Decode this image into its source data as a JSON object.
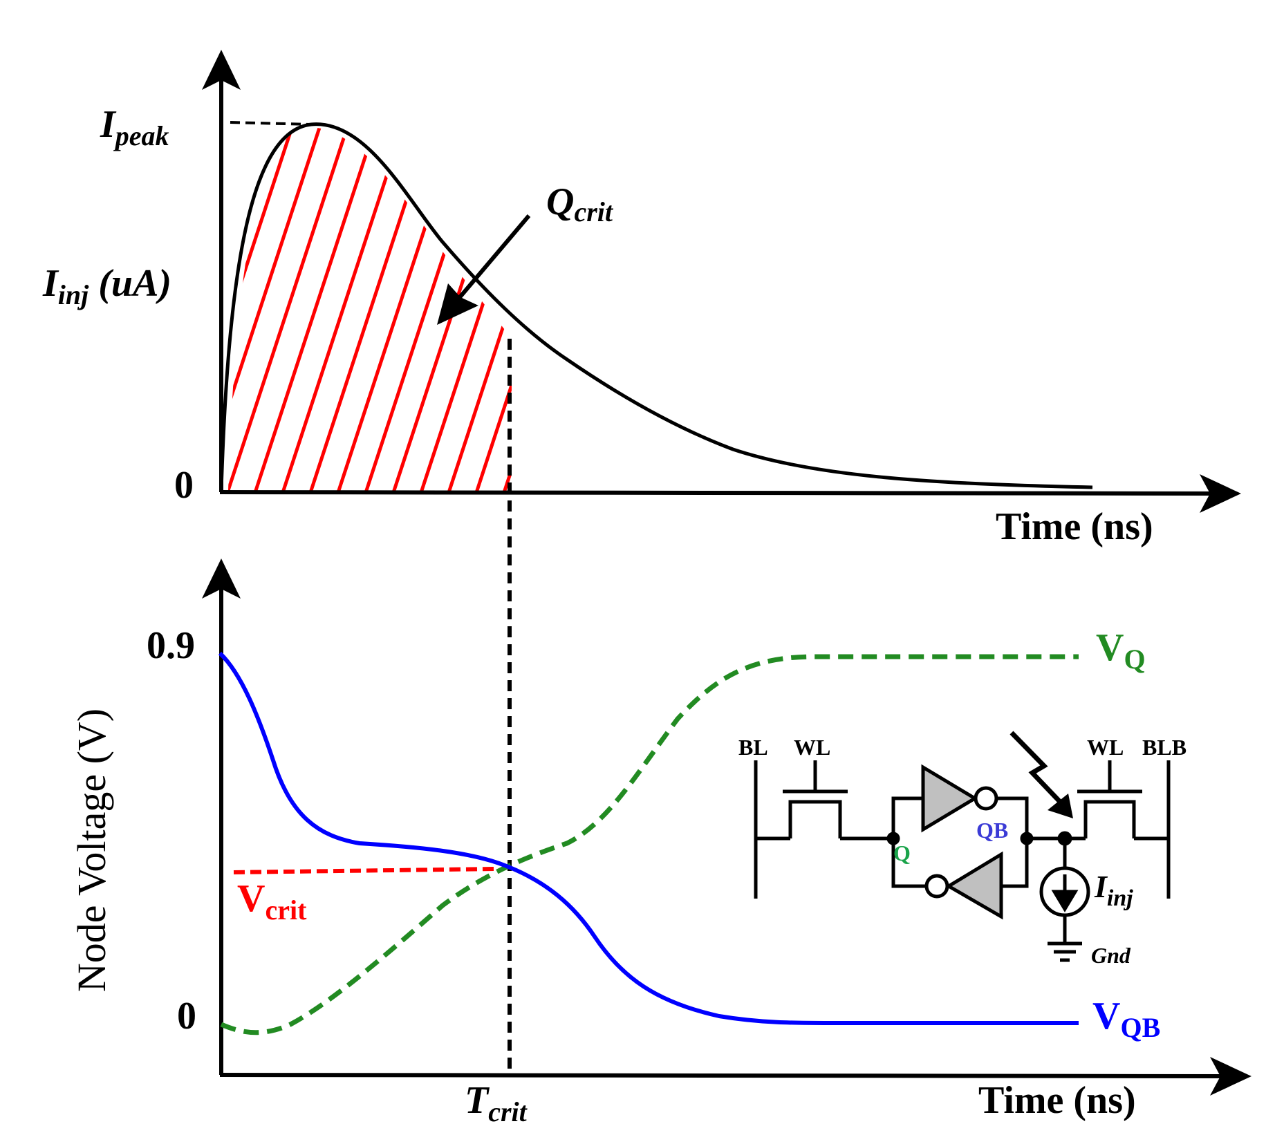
{
  "colors": {
    "axis": "#000000",
    "hatch": "#ff0000",
    "vq": "#228b22",
    "vqb": "#0000ff",
    "vcrit": "#ff0000",
    "gate_fill": "#c0c0c0",
    "q_label": "#1aa34a",
    "qb_label": "#3b3bd6"
  },
  "top_plot": {
    "y_label_main": "I",
    "y_label_sub": "inj",
    "y_label_unit": " (uA)",
    "ipeak_main": "I",
    "ipeak_sub": "peak",
    "zero_tick": "0",
    "qcrit_main": "Q",
    "qcrit_sub": "crit",
    "x_label": "Time (ns)"
  },
  "bottom_plot": {
    "y_label": "Node Voltage (V)",
    "y_tick_top": "0.9",
    "y_tick_zero": "0",
    "vq_main": "V",
    "vq_sub": "Q",
    "vqb_main": "V",
    "vqb_sub": "QB",
    "vcrit_main": "V",
    "vcrit_sub": "crit",
    "tcrit_main": "T",
    "tcrit_sub": "crit",
    "x_label": "Time (ns)"
  },
  "schematic": {
    "bl": "BL",
    "wl_left": "WL",
    "wl_right": "WL",
    "blb": "BLB",
    "q": "Q",
    "qb": "QB",
    "iinj_main": "I",
    "iinj_sub": "inj",
    "gnd": "Gnd"
  }
}
